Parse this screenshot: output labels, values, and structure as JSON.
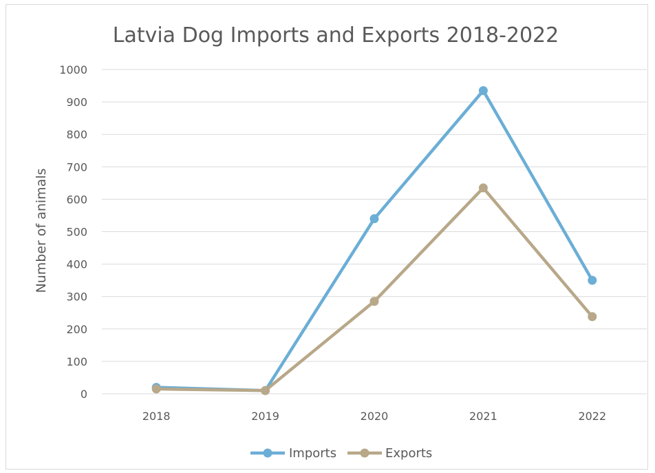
{
  "chart_data": {
    "type": "line",
    "title": "Latvia Dog Imports and Exports 2018-2022",
    "xlabel": "",
    "ylabel": "Number of animals",
    "categories": [
      "2018",
      "2019",
      "2020",
      "2021",
      "2022"
    ],
    "yticks": [
      "0",
      "100",
      "200",
      "300",
      "400",
      "500",
      "600",
      "700",
      "800",
      "900",
      "1000"
    ],
    "ylim": [
      0,
      1000
    ],
    "grid": true,
    "legend_position": "bottom",
    "series": [
      {
        "name": "Imports",
        "color": "#6baed6",
        "values": [
          20,
          10,
          540,
          935,
          350
        ]
      },
      {
        "name": "Exports",
        "color": "#b8a889",
        "values": [
          15,
          10,
          285,
          635,
          238
        ]
      }
    ]
  }
}
